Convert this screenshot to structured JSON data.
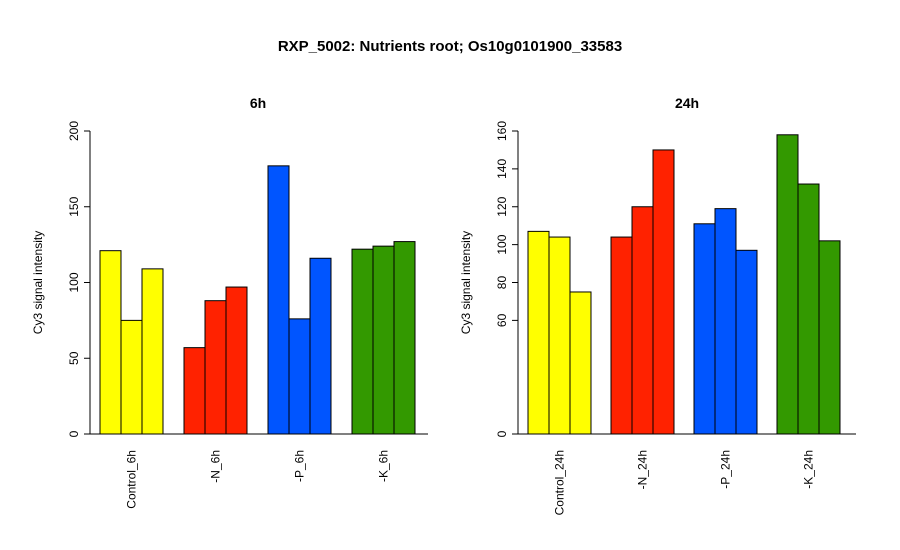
{
  "title": "RXP_5002: Nutrients root; Os10g0101900_33583",
  "chart_data": [
    {
      "type": "bar",
      "title": "6h",
      "ylabel": "Cy3 signal intensity",
      "xlabel": "",
      "ylim": [
        0,
        200
      ],
      "yticks": [
        0,
        50,
        100,
        150,
        200
      ],
      "groups": [
        {
          "label": "Control_6h",
          "color": "#ffff00",
          "values": [
            121,
            75,
            109
          ]
        },
        {
          "label": "-N_6h",
          "color": "#ff2200",
          "values": [
            57,
            88,
            97
          ]
        },
        {
          "label": "-P_6h",
          "color": "#0055ff",
          "values": [
            177,
            76,
            116
          ]
        },
        {
          "label": "-K_6h",
          "color": "#339900",
          "values": [
            122,
            124,
            127
          ]
        }
      ]
    },
    {
      "type": "bar",
      "title": "24h",
      "ylabel": "Cy3 signal intensity",
      "xlabel": "",
      "ylim": [
        0,
        160
      ],
      "yticks": [
        0,
        60,
        80,
        100,
        120,
        140,
        160
      ],
      "groups": [
        {
          "label": "Control_24h",
          "color": "#ffff00",
          "values": [
            107,
            104,
            75
          ]
        },
        {
          "label": "-N_24h",
          "color": "#ff2200",
          "values": [
            104,
            120,
            150
          ]
        },
        {
          "label": "-P_24h",
          "color": "#0055ff",
          "values": [
            111,
            119,
            97
          ]
        },
        {
          "label": "-K_24h",
          "color": "#339900",
          "values": [
            158,
            132,
            102
          ]
        }
      ]
    }
  ]
}
